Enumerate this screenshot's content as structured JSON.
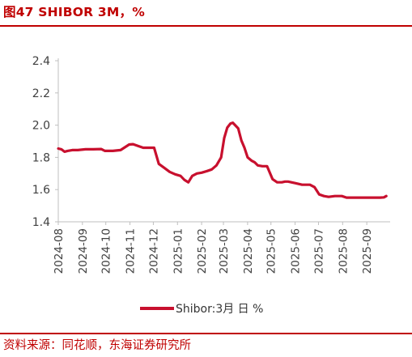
{
  "figure": {
    "title": "图47  SHIBOR 3M，%",
    "source": "资料来源：同花顺，东海证券研究所"
  },
  "colors": {
    "accent": "#c00000",
    "series": "#c8102e",
    "axis": "#bfbfbf",
    "text": "#404040"
  },
  "chart_data": {
    "type": "line",
    "title": "",
    "xlabel": "",
    "ylabel": "",
    "ylim": [
      1.4,
      2.4
    ],
    "yticks": [
      "1.4",
      "1.6",
      "1.8",
      "2.0",
      "2.2",
      "2.4"
    ],
    "xticks": [
      "2024-08",
      "2024-09",
      "2024-10",
      "2024-11",
      "2024-12",
      "2025-01",
      "2025-02",
      "2025-03",
      "2025-04",
      "2025-05",
      "2025-06",
      "2025-07",
      "2025-08",
      "2025-09"
    ],
    "grid": false,
    "legend_position": "bottom",
    "series": [
      {
        "name": "Shibor:3月 日 %",
        "x": [
          "2024-08-01",
          "2024-08-05",
          "2024-08-09",
          "2024-08-13",
          "2024-08-19",
          "2024-08-26",
          "2024-09-05",
          "2024-09-15",
          "2024-09-25",
          "2024-09-30",
          "2024-10-10",
          "2024-10-20",
          "2024-10-31",
          "2024-11-05",
          "2024-11-12",
          "2024-11-18",
          "2024-11-25",
          "2024-12-02",
          "2024-12-08",
          "2024-12-15",
          "2024-12-22",
          "2024-12-29",
          "2025-01-05",
          "2025-01-10",
          "2025-01-15",
          "2025-01-20",
          "2025-01-26",
          "2025-02-01",
          "2025-02-08",
          "2025-02-14",
          "2025-02-20",
          "2025-02-26",
          "2025-03-02",
          "2025-03-06",
          "2025-03-10",
          "2025-03-13",
          "2025-03-16",
          "2025-03-20",
          "2025-03-24",
          "2025-03-28",
          "2025-04-01",
          "2025-04-06",
          "2025-04-10",
          "2025-04-14",
          "2025-04-20",
          "2025-04-26",
          "2025-05-03",
          "2025-05-09",
          "2025-05-15",
          "2025-05-19",
          "2025-05-23",
          "2025-06-01",
          "2025-06-10",
          "2025-06-20",
          "2025-06-26",
          "2025-07-02",
          "2025-07-08",
          "2025-07-14",
          "2025-07-22",
          "2025-07-31",
          "2025-08-06",
          "2025-08-15",
          "2025-08-24",
          "2025-09-01",
          "2025-09-10",
          "2025-09-18",
          "2025-09-23",
          "2025-09-26"
        ],
        "values": [
          1.855,
          1.85,
          1.835,
          1.84,
          1.845,
          1.845,
          1.85,
          1.85,
          1.852,
          1.84,
          1.84,
          1.845,
          1.88,
          1.882,
          1.87,
          1.86,
          1.86,
          1.86,
          1.76,
          1.735,
          1.71,
          1.695,
          1.685,
          1.66,
          1.645,
          1.685,
          1.7,
          1.705,
          1.715,
          1.725,
          1.75,
          1.8,
          1.92,
          1.985,
          2.01,
          2.015,
          2.0,
          1.98,
          1.905,
          1.86,
          1.8,
          1.78,
          1.77,
          1.75,
          1.745,
          1.745,
          1.665,
          1.645,
          1.645,
          1.65,
          1.65,
          1.64,
          1.63,
          1.63,
          1.615,
          1.57,
          1.56,
          1.555,
          1.56,
          1.56,
          1.55,
          1.55,
          1.55,
          1.55,
          1.55,
          1.55,
          1.552,
          1.56
        ]
      }
    ]
  }
}
